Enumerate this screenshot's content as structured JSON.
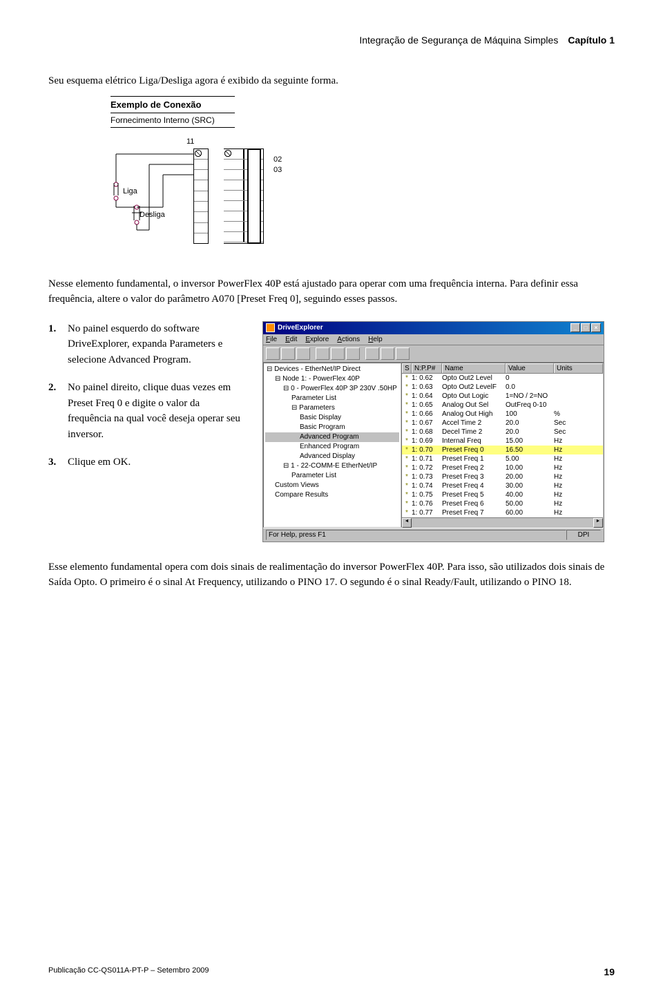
{
  "header": {
    "breadcrumb": "Integração de Segurança de Máquina Simples",
    "chapter": "Capítulo 1"
  },
  "intro": "Seu esquema elétrico Liga/Desliga agora é exibido da seguinte forma.",
  "conexao": {
    "title": "Exemplo de Conexão",
    "subtitle": "Fornecimento Interno (SRC)",
    "labels": {
      "l11": "11",
      "l02": "02",
      "l03": "03",
      "liga": "Liga",
      "desliga": "Desliga"
    }
  },
  "para2": "Nesse elemento fundamental, o inversor PowerFlex 40P está ajustado para operar com uma frequência interna. Para definir essa frequência, altere o valor do parâmetro A070 [Preset Freq 0], seguindo esses passos.",
  "steps": [
    {
      "n": "1.",
      "t": "No painel esquerdo do software DriveExplorer, expanda Parameters e selecione Advanced Program."
    },
    {
      "n": "2.",
      "t": "No painel direito, clique duas vezes em Preset Freq 0 e digite o valor da frequência na qual você deseja operar seu inversor."
    },
    {
      "n": "3.",
      "t": "Clique em OK."
    }
  ],
  "screenshot": {
    "title": "DriveExplorer",
    "menus": [
      "File",
      "Edit",
      "Explore",
      "Actions",
      "Help"
    ],
    "tree": [
      {
        "lvl": 0,
        "t": "⊟ Devices - EtherNet/IP Direct"
      },
      {
        "lvl": 1,
        "t": "⊟ Node 1: - PowerFlex 40P"
      },
      {
        "lvl": 2,
        "t": "⊟ 0 - PowerFlex 40P 3P 230V   .50HP"
      },
      {
        "lvl": 3,
        "t": "Parameter List"
      },
      {
        "lvl": 3,
        "t": "⊟ Parameters"
      },
      {
        "lvl": 4,
        "t": "Basic Display"
      },
      {
        "lvl": 4,
        "t": "Basic Program"
      },
      {
        "lvl": 4,
        "t": "Advanced Program",
        "sel": true
      },
      {
        "lvl": 4,
        "t": "Enhanced Program"
      },
      {
        "lvl": 4,
        "t": "Advanced Display"
      },
      {
        "lvl": 2,
        "t": "⊟ 1 - 22-COMM-E EtherNet/IP"
      },
      {
        "lvl": 3,
        "t": "Parameter List"
      },
      {
        "lvl": 1,
        "t": "Custom Views"
      },
      {
        "lvl": 1,
        "t": "Compare Results"
      }
    ],
    "grid_headers": {
      "s": "S",
      "np": "N:P.P#",
      "name": "Name",
      "value": "Value",
      "units": "Units"
    },
    "rows": [
      {
        "s": "*",
        "np": "1: 0.62",
        "name": "Opto Out2 Level",
        "val": "0",
        "un": ""
      },
      {
        "s": "*",
        "np": "1: 0.63",
        "name": "Opto Out2 LevelF",
        "val": "0.0",
        "un": ""
      },
      {
        "s": "*",
        "np": "1: 0.64",
        "name": "Opto Out Logic",
        "val": "1=NO / 2=NO",
        "un": ""
      },
      {
        "s": "*",
        "np": "1: 0.65",
        "name": "Analog Out Sel",
        "val": "OutFreq 0-10",
        "un": ""
      },
      {
        "s": "*",
        "np": "1: 0.66",
        "name": "Analog Out High",
        "val": "100",
        "un": "%"
      },
      {
        "s": "*",
        "np": "1: 0.67",
        "name": "Accel Time 2",
        "val": "20.0",
        "un": "Sec"
      },
      {
        "s": "*",
        "np": "1: 0.68",
        "name": "Decel Time 2",
        "val": "20.0",
        "un": "Sec"
      },
      {
        "s": "*",
        "np": "1: 0.69",
        "name": "Internal Freq",
        "val": "15.00",
        "un": "Hz"
      },
      {
        "s": "*",
        "np": "1: 0.70",
        "name": "Preset Freq 0",
        "val": "16.50",
        "un": "Hz",
        "sel": true
      },
      {
        "s": "*",
        "np": "1: 0.71",
        "name": "Preset Freq 1",
        "val": "5.00",
        "un": "Hz"
      },
      {
        "s": "*",
        "np": "1: 0.72",
        "name": "Preset Freq 2",
        "val": "10.00",
        "un": "Hz"
      },
      {
        "s": "*",
        "np": "1: 0.73",
        "name": "Preset Freq 3",
        "val": "20.00",
        "un": "Hz"
      },
      {
        "s": "*",
        "np": "1: 0.74",
        "name": "Preset Freq 4",
        "val": "30.00",
        "un": "Hz"
      },
      {
        "s": "*",
        "np": "1: 0.75",
        "name": "Preset Freq 5",
        "val": "40.00",
        "un": "Hz"
      },
      {
        "s": "*",
        "np": "1: 0.76",
        "name": "Preset Freq 6",
        "val": "50.00",
        "un": "Hz"
      },
      {
        "s": "*",
        "np": "1: 0.77",
        "name": "Preset Freq 7",
        "val": "60.00",
        "un": "Hz"
      }
    ],
    "status_left": "For Help, press F1",
    "status_right": "DPI"
  },
  "para3": "Esse elemento fundamental opera com dois sinais de realimentação do inversor PowerFlex 40P. Para isso, são utilizados dois sinais de Saída Opto. O primeiro é o sinal At Frequency, utilizando o PINO 17. O segundo é o sinal Ready/Fault, utilizando o PINO 18.",
  "footer": {
    "pub": "Publicação CC-QS011A-PT-P – Setembro 2009",
    "page": "19"
  }
}
